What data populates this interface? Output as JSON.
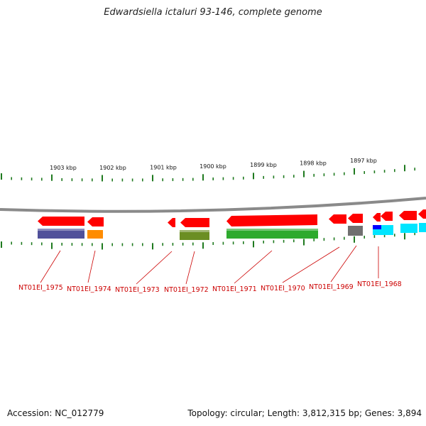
{
  "title": "Edwardsiella ictaluri 93-146, complete genome",
  "accession": "Accession: NC_012779",
  "summary": "Topology: circular; Length: 3,812,315 bp; Genes: 3,894",
  "scale_labels": [
    "1903 kbp",
    "1902 kbp",
    "1901 kbp",
    "1900 kbp",
    "1899 kbp",
    "1898 kbp",
    "1897 kbp"
  ],
  "gene_labels": [
    "NT01EI_1975",
    "NT01EI_1974",
    "NT01EI_1973",
    "NT01EI_1972",
    "NT01EI_1971",
    "NT01EI_1970",
    "NT01EI_1969",
    "NT01EI_1968"
  ],
  "colors": {
    "cds": "#ff0000",
    "purple": "#50509a",
    "orange": "#ff8c00",
    "olive": "#6b8e23",
    "green": "#2eaa2e",
    "gray": "#707070",
    "cyan": "#00e5ff",
    "blue": "#0000ff",
    "tick": "#1f7a1f",
    "backbone": "#888888",
    "label": "#cc0000"
  }
}
